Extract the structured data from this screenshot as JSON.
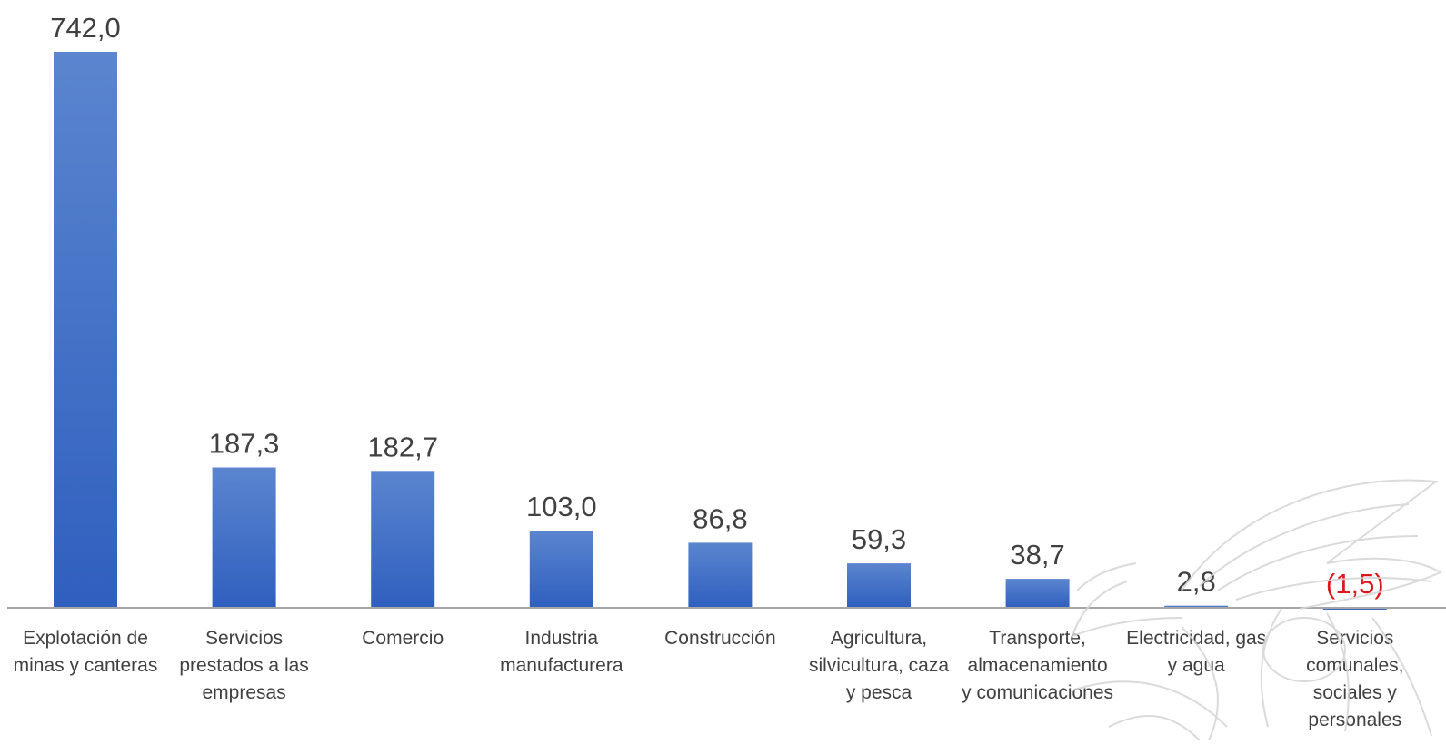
{
  "chart_data": {
    "type": "bar",
    "title": "",
    "xlabel": "",
    "ylabel": "",
    "categories": [
      [
        "Explotación de",
        "minas y canteras"
      ],
      [
        "Servicios",
        "prestados a las",
        "empresas"
      ],
      [
        "Comercio"
      ],
      [
        "Industria",
        "manufacturera"
      ],
      [
        "Construcción"
      ],
      [
        "Agricultura,",
        "silvicultura, caza",
        "y pesca"
      ],
      [
        "Transporte,",
        "almacenamiento",
        "y comunicaciones"
      ],
      [
        "Electricidad, gas",
        "y agua"
      ],
      [
        "Servicios",
        "comunales,",
        "sociales y",
        "personales"
      ]
    ],
    "values": [
      742.0,
      187.3,
      182.7,
      103.0,
      86.8,
      59.3,
      38.7,
      2.8,
      -1.5
    ],
    "data_labels": [
      "742,0",
      "187,3",
      "182,7",
      "103,0",
      "86,8",
      "59,3",
      "38,7",
      "2,8",
      "(1,5)"
    ],
    "ylim": [
      -5,
      750
    ],
    "grid": false,
    "legend": "none",
    "colors": {
      "bar_top": "#5b85cf",
      "bar_bottom": "#2f5fbf",
      "negative_label": "#e0141b",
      "label": "#404040",
      "axis": "#a6a6a6"
    }
  }
}
